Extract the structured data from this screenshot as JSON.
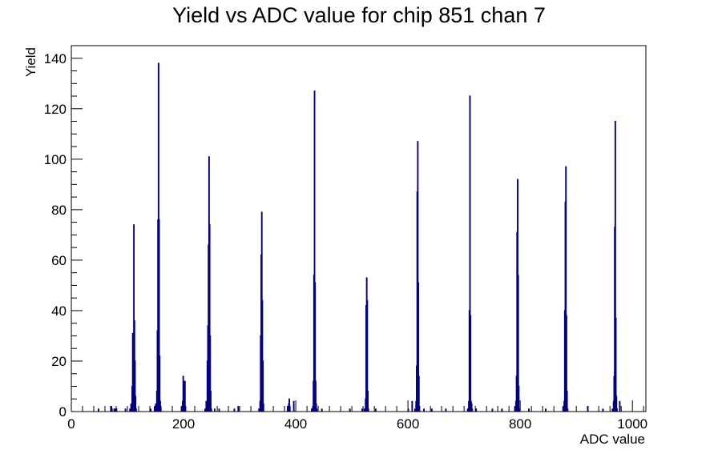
{
  "chart_data": {
    "type": "bar",
    "title": "Yield vs ADC value for chip 851 chan 7",
    "xlabel": "ADC value",
    "ylabel": "Yield",
    "xlim": [
      0,
      1024
    ],
    "ylim": [
      0,
      145
    ],
    "x_ticks": [
      0,
      200,
      400,
      600,
      800,
      1000
    ],
    "y_ticks": [
      0,
      20,
      40,
      60,
      80,
      100,
      120,
      140
    ],
    "x_minor_step": 20,
    "y_minor_step": 5,
    "bin_width": 1,
    "line_color": "#000080",
    "grid": false,
    "legend": "none",
    "series": [
      {
        "bins": [
          [
            48,
            1
          ],
          [
            70,
            2
          ],
          [
            71,
            2
          ],
          [
            72,
            1
          ],
          [
            76,
            1
          ],
          [
            78,
            1
          ],
          [
            80,
            1
          ],
          [
            96,
            1
          ],
          [
            104,
            1
          ],
          [
            106,
            3
          ],
          [
            108,
            10
          ],
          [
            109,
            31
          ],
          [
            110,
            18
          ],
          [
            111,
            74
          ],
          [
            112,
            36
          ],
          [
            113,
            20
          ],
          [
            114,
            6
          ],
          [
            115,
            1
          ],
          [
            141,
            1
          ],
          [
            148,
            2
          ],
          [
            150,
            3
          ],
          [
            152,
            8
          ],
          [
            153,
            32
          ],
          [
            154,
            76
          ],
          [
            155,
            138
          ],
          [
            156,
            76
          ],
          [
            157,
            22
          ],
          [
            158,
            4
          ],
          [
            159,
            1
          ],
          [
            196,
            2
          ],
          [
            198,
            4
          ],
          [
            199,
            14
          ],
          [
            200,
            6
          ],
          [
            201,
            12
          ],
          [
            202,
            12
          ],
          [
            203,
            2
          ],
          [
            238,
            1
          ],
          [
            240,
            4
          ],
          [
            242,
            20
          ],
          [
            243,
            34
          ],
          [
            244,
            66
          ],
          [
            245,
            101
          ],
          [
            246,
            74
          ],
          [
            247,
            30
          ],
          [
            248,
            8
          ],
          [
            249,
            1
          ],
          [
            255,
            1
          ],
          [
            263,
            1
          ],
          [
            290,
            1
          ],
          [
            297,
            2
          ],
          [
            334,
            1
          ],
          [
            336,
            4
          ],
          [
            337,
            30
          ],
          [
            338,
            62
          ],
          [
            339,
            79
          ],
          [
            340,
            44
          ],
          [
            341,
            20
          ],
          [
            342,
            3
          ],
          [
            385,
            2
          ],
          [
            387,
            3
          ],
          [
            388,
            5
          ],
          [
            389,
            2
          ],
          [
            396,
            4
          ],
          [
            428,
            1
          ],
          [
            430,
            2
          ],
          [
            431,
            12
          ],
          [
            432,
            54
          ],
          [
            433,
            127
          ],
          [
            434,
            51
          ],
          [
            435,
            12
          ],
          [
            436,
            3
          ],
          [
            437,
            1
          ],
          [
            446,
            1
          ],
          [
            496,
            1
          ],
          [
            518,
            1
          ],
          [
            522,
            1
          ],
          [
            524,
            5
          ],
          [
            525,
            42
          ],
          [
            526,
            53
          ],
          [
            527,
            44
          ],
          [
            528,
            8
          ],
          [
            529,
            1
          ],
          [
            542,
            1
          ],
          [
            600,
            1
          ],
          [
            607,
            4
          ],
          [
            612,
            1
          ],
          [
            614,
            4
          ],
          [
            615,
            18
          ],
          [
            616,
            87
          ],
          [
            617,
            107
          ],
          [
            618,
            51
          ],
          [
            619,
            14
          ],
          [
            620,
            2
          ],
          [
            628,
            1
          ],
          [
            642,
            1
          ],
          [
            667,
            1
          ],
          [
            706,
            1
          ],
          [
            708,
            4
          ],
          [
            709,
            40
          ],
          [
            710,
            125
          ],
          [
            711,
            38
          ],
          [
            712,
            4
          ],
          [
            713,
            3
          ],
          [
            714,
            1
          ],
          [
            721,
            1
          ],
          [
            750,
            1
          ],
          [
            767,
            1
          ],
          [
            790,
            2
          ],
          [
            792,
            4
          ],
          [
            793,
            14
          ],
          [
            794,
            71
          ],
          [
            795,
            92
          ],
          [
            796,
            54
          ],
          [
            797,
            10
          ],
          [
            798,
            1
          ],
          [
            815,
            1
          ],
          [
            845,
            1
          ],
          [
            876,
            2
          ],
          [
            878,
            4
          ],
          [
            879,
            40
          ],
          [
            880,
            83
          ],
          [
            881,
            97
          ],
          [
            882,
            38
          ],
          [
            883,
            8
          ],
          [
            884,
            1
          ],
          [
            920,
            2
          ],
          [
            947,
            1
          ],
          [
            964,
            1
          ],
          [
            966,
            4
          ],
          [
            967,
            14
          ],
          [
            968,
            73
          ],
          [
            969,
            115
          ],
          [
            970,
            37
          ],
          [
            971,
            6
          ],
          [
            972,
            1
          ],
          [
            977,
            4
          ]
        ]
      }
    ]
  }
}
